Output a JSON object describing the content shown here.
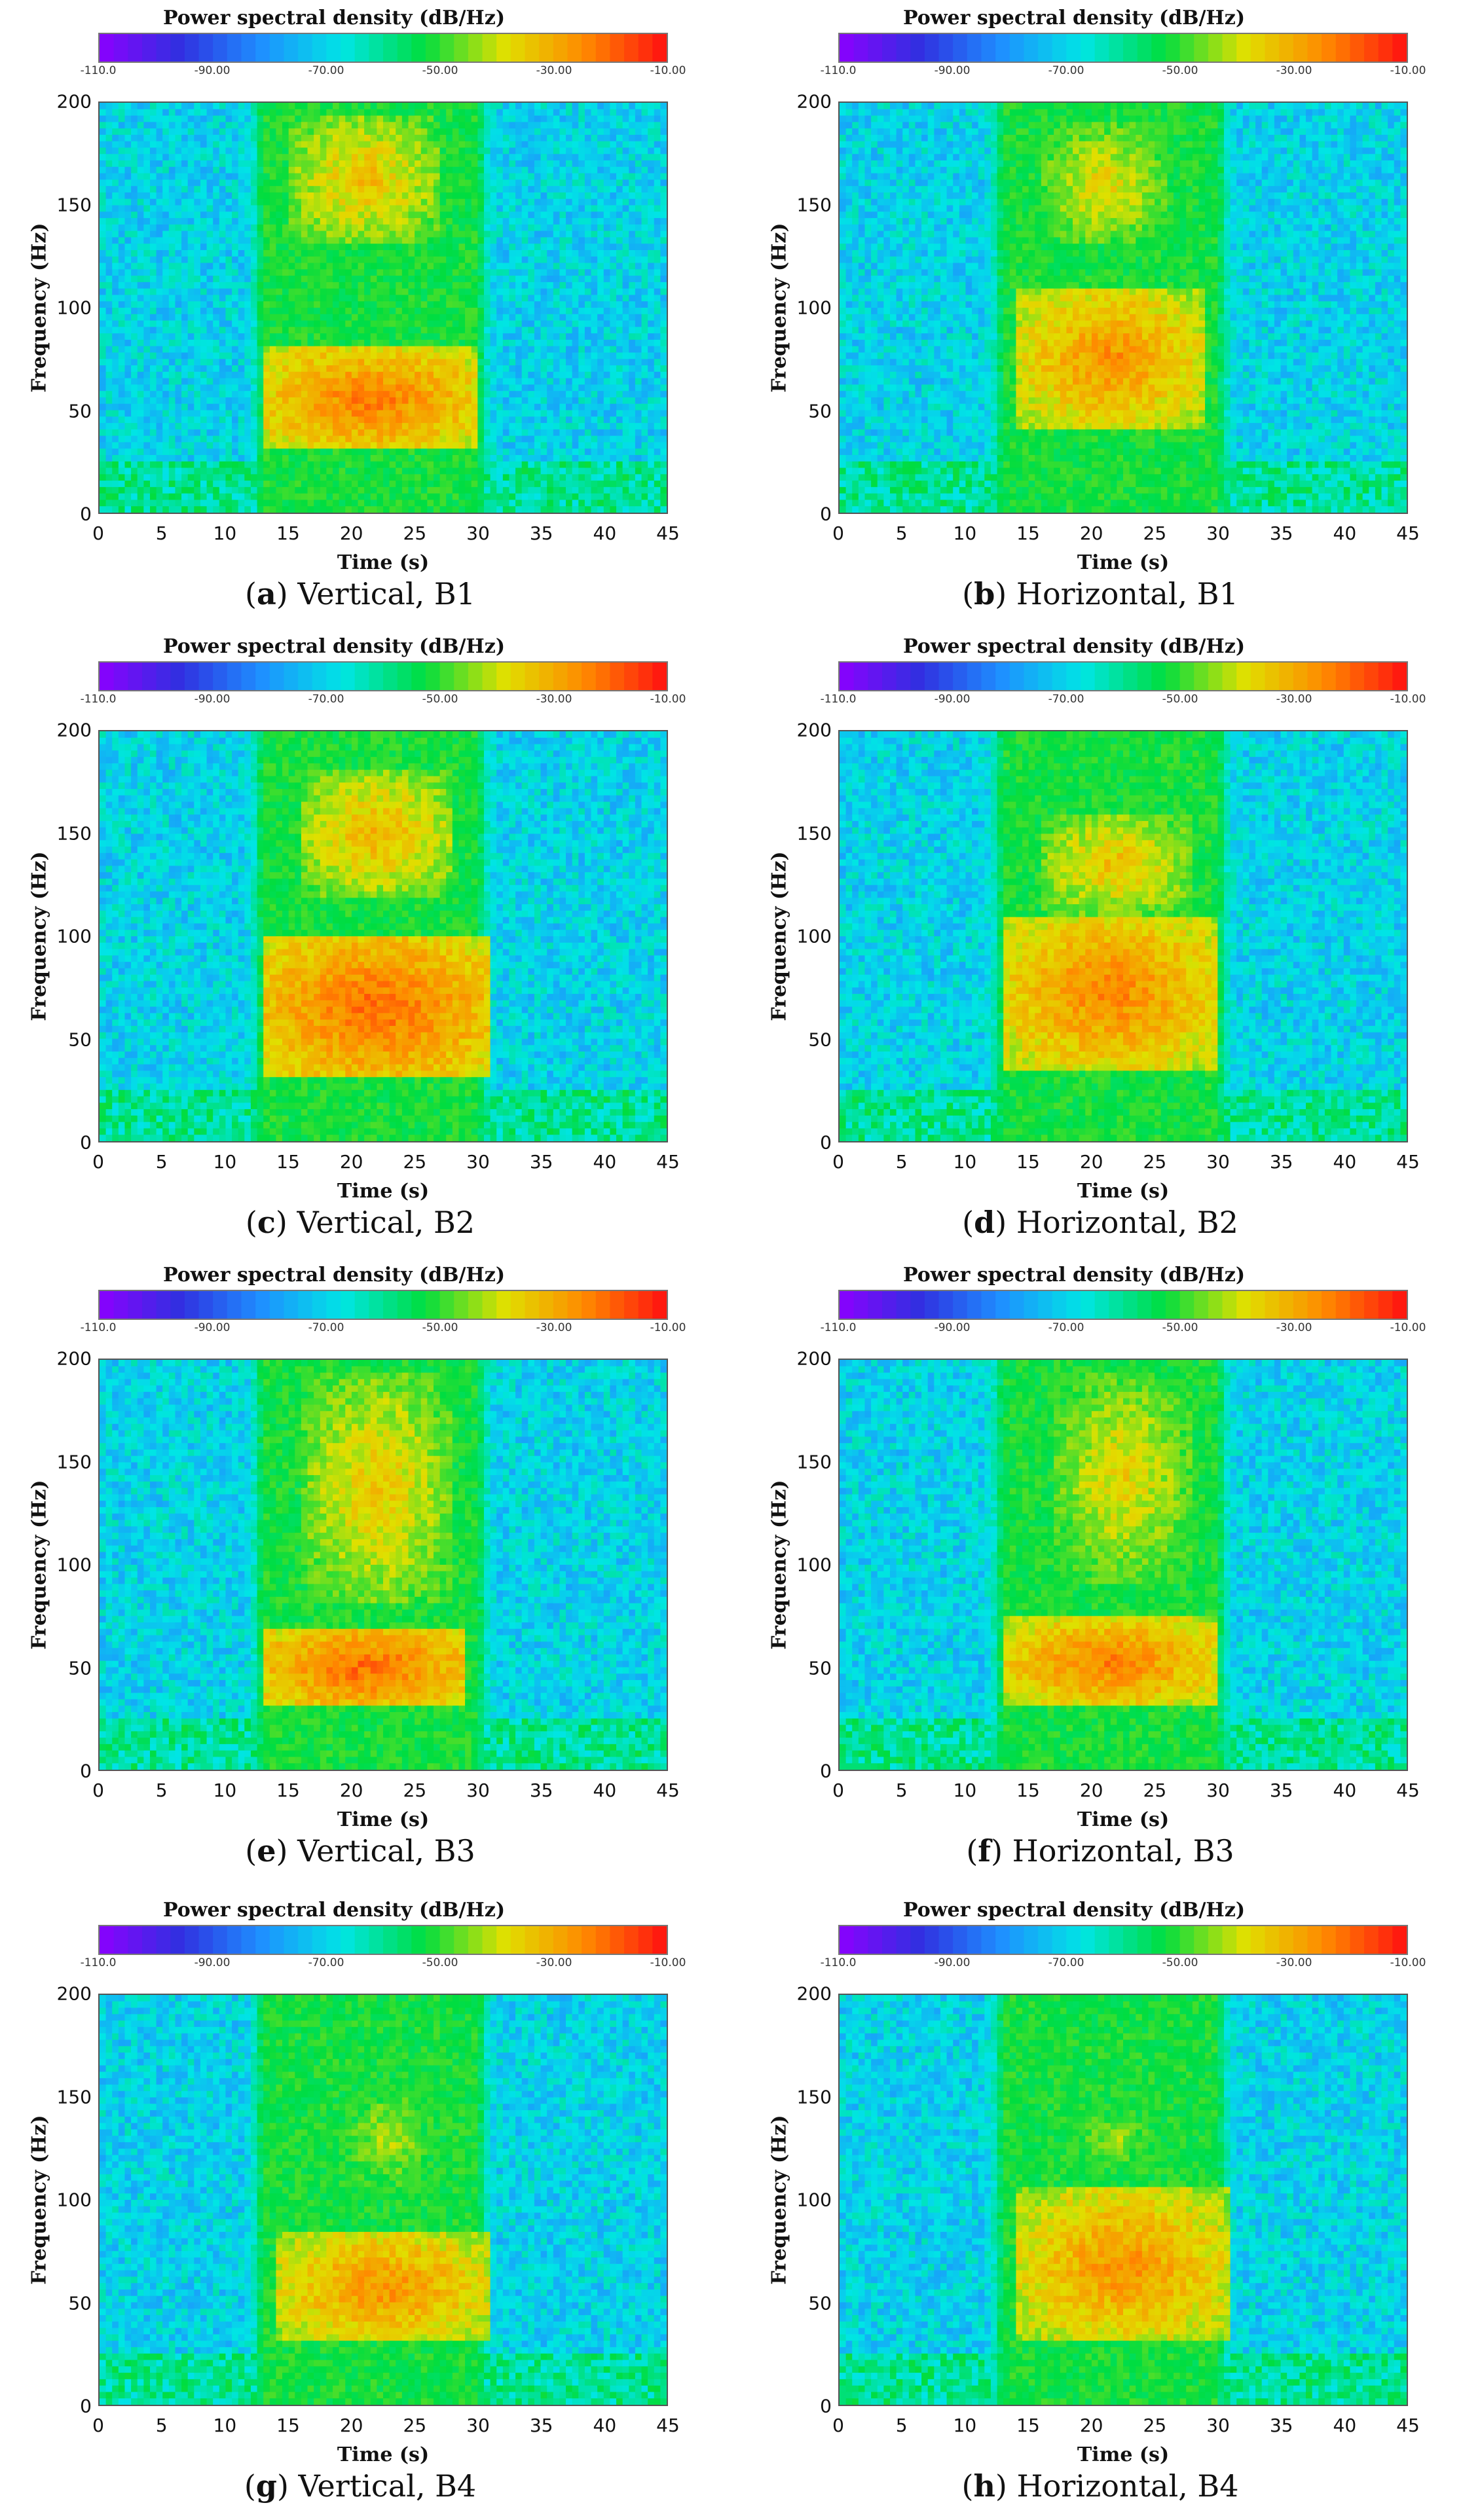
{
  "colorbar": {
    "title": "Power spectral density (dB/Hz)",
    "ticks": [
      "-110.0",
      "-90.00",
      "-70.00",
      "-50.00",
      "-30.00",
      "-10.00"
    ],
    "colors": [
      "#8b00ff",
      "#3030e0",
      "#1e90ff",
      "#00e5e5",
      "#00dd40",
      "#e0e000",
      "#ff8800",
      "#ff1010"
    ]
  },
  "chart_data": [
    {
      "type": "heatmap",
      "panel": "a",
      "caption_letter": "a",
      "caption_text": ") Vertical, B1",
      "title": "Power spectral density (dB/Hz)",
      "xlabel": "Time (s)",
      "ylabel": "Frequency (Hz)",
      "x_ticks": [
        "0",
        "5",
        "10",
        "15",
        "20",
        "25",
        "30",
        "35",
        "40",
        "45"
      ],
      "y_ticks": [
        "0",
        "50",
        "100",
        "150",
        "200"
      ],
      "xlim": [
        0,
        45
      ],
      "ylim": [
        0,
        200
      ],
      "clim": [
        -110,
        -10
      ],
      "hotspots": [
        {
          "t0": 13,
          "t1": 30,
          "f0": 30,
          "f1": 80,
          "level": -22
        },
        {
          "t0": 15,
          "t1": 27,
          "f0": 130,
          "f1": 195,
          "level": -32
        }
      ]
    },
    {
      "type": "heatmap",
      "panel": "b",
      "caption_letter": "b",
      "caption_text": ") Horizontal, B1",
      "title": "Power spectral density (dB/Hz)",
      "xlabel": "Time (s)",
      "ylabel": "Frequency (Hz)",
      "x_ticks": [
        "0",
        "5",
        "10",
        "15",
        "20",
        "25",
        "30",
        "35",
        "40",
        "45"
      ],
      "y_ticks": [
        "0",
        "50",
        "100",
        "150",
        "200"
      ],
      "xlim": [
        0,
        45
      ],
      "ylim": [
        0,
        200
      ],
      "clim": [
        -110,
        -10
      ],
      "hotspots": [
        {
          "t0": 14,
          "t1": 29,
          "f0": 40,
          "f1": 110,
          "level": -25
        },
        {
          "t0": 16,
          "t1": 26,
          "f0": 130,
          "f1": 190,
          "level": -35
        }
      ]
    },
    {
      "type": "heatmap",
      "panel": "c",
      "caption_letter": "c",
      "caption_text": ") Vertical, B2",
      "title": "Power spectral density (dB/Hz)",
      "xlabel": "Time (s)",
      "ylabel": "Frequency (Hz)",
      "x_ticks": [
        "0",
        "5",
        "10",
        "15",
        "20",
        "25",
        "30",
        "35",
        "40",
        "45"
      ],
      "y_ticks": [
        "0",
        "50",
        "100",
        "150",
        "200"
      ],
      "xlim": [
        0,
        45
      ],
      "ylim": [
        0,
        200
      ],
      "clim": [
        -110,
        -10
      ],
      "hotspots": [
        {
          "t0": 13,
          "t1": 31,
          "f0": 30,
          "f1": 100,
          "level": -20
        },
        {
          "t0": 16,
          "t1": 28,
          "f0": 120,
          "f1": 180,
          "level": -30
        }
      ]
    },
    {
      "type": "heatmap",
      "panel": "d",
      "caption_letter": "d",
      "caption_text": ") Horizontal, B2",
      "title": "Power spectral density (dB/Hz)",
      "xlabel": "Time (s)",
      "ylabel": "Frequency (Hz)",
      "x_ticks": [
        "0",
        "5",
        "10",
        "15",
        "20",
        "25",
        "30",
        "35",
        "40",
        "45"
      ],
      "y_ticks": [
        "0",
        "50",
        "100",
        "150",
        "200"
      ],
      "xlim": [
        0,
        45
      ],
      "ylim": [
        0,
        200
      ],
      "clim": [
        -110,
        -10
      ],
      "hotspots": [
        {
          "t0": 13,
          "t1": 30,
          "f0": 35,
          "f1": 110,
          "level": -23
        },
        {
          "t0": 16,
          "t1": 28,
          "f0": 110,
          "f1": 160,
          "level": -32
        }
      ]
    },
    {
      "type": "heatmap",
      "panel": "e",
      "caption_letter": "e",
      "caption_text": ") Vertical, B3",
      "title": "Power spectral density (dB/Hz)",
      "xlabel": "Time (s)",
      "ylabel": "Frequency (Hz)",
      "x_ticks": [
        "0",
        "5",
        "10",
        "15",
        "20",
        "25",
        "30",
        "35",
        "40",
        "45"
      ],
      "y_ticks": [
        "0",
        "50",
        "100",
        "150",
        "200"
      ],
      "xlim": [
        0,
        45
      ],
      "ylim": [
        0,
        200
      ],
      "clim": [
        -110,
        -10
      ],
      "hotspots": [
        {
          "t0": 13,
          "t1": 29,
          "f0": 30,
          "f1": 70,
          "level": -20
        },
        {
          "t0": 16,
          "t1": 28,
          "f0": 80,
          "f1": 195,
          "level": -33
        }
      ]
    },
    {
      "type": "heatmap",
      "panel": "f",
      "caption_letter": "f",
      "caption_text": ") Horizontal, B3",
      "title": "Power spectral density (dB/Hz)",
      "xlabel": "Time (s)",
      "ylabel": "Frequency (Hz)",
      "x_ticks": [
        "0",
        "5",
        "10",
        "15",
        "20",
        "25",
        "30",
        "35",
        "40",
        "45"
      ],
      "y_ticks": [
        "0",
        "50",
        "100",
        "150",
        "200"
      ],
      "xlim": [
        0,
        45
      ],
      "ylim": [
        0,
        200
      ],
      "clim": [
        -110,
        -10
      ],
      "hotspots": [
        {
          "t0": 13,
          "t1": 30,
          "f0": 30,
          "f1": 75,
          "level": -23
        },
        {
          "t0": 17,
          "t1": 28,
          "f0": 90,
          "f1": 195,
          "level": -35
        }
      ]
    },
    {
      "type": "heatmap",
      "panel": "g",
      "caption_letter": "g",
      "caption_text": ") Vertical, B4",
      "title": "Power spectral density (dB/Hz)",
      "xlabel": "Time (s)",
      "ylabel": "Frequency (Hz)",
      "x_ticks": [
        "0",
        "5",
        "10",
        "15",
        "20",
        "25",
        "30",
        "35",
        "40",
        "45"
      ],
      "y_ticks": [
        "0",
        "50",
        "100",
        "150",
        "200"
      ],
      "xlim": [
        0,
        45
      ],
      "ylim": [
        0,
        200
      ],
      "clim": [
        -110,
        -10
      ],
      "hotspots": [
        {
          "t0": 14,
          "t1": 31,
          "f0": 30,
          "f1": 85,
          "level": -25
        },
        {
          "t0": 19,
          "t1": 27,
          "f0": 100,
          "f1": 160,
          "level": -40
        }
      ]
    },
    {
      "type": "heatmap",
      "panel": "h",
      "caption_letter": "h",
      "caption_text": ") Horizontal, B4",
      "title": "Power spectral density (dB/Hz)",
      "xlabel": "Time (s)",
      "ylabel": "Frequency (Hz)",
      "x_ticks": [
        "0",
        "5",
        "10",
        "15",
        "20",
        "25",
        "30",
        "35",
        "40",
        "45"
      ],
      "y_ticks": [
        "0",
        "50",
        "100",
        "150",
        "200"
      ],
      "xlim": [
        0,
        45
      ],
      "ylim": [
        0,
        200
      ],
      "clim": [
        -110,
        -10
      ],
      "hotspots": [
        {
          "t0": 14,
          "t1": 31,
          "f0": 30,
          "f1": 105,
          "level": -25
        },
        {
          "t0": 18,
          "t1": 26,
          "f0": 110,
          "f1": 150,
          "level": -42
        }
      ]
    }
  ]
}
